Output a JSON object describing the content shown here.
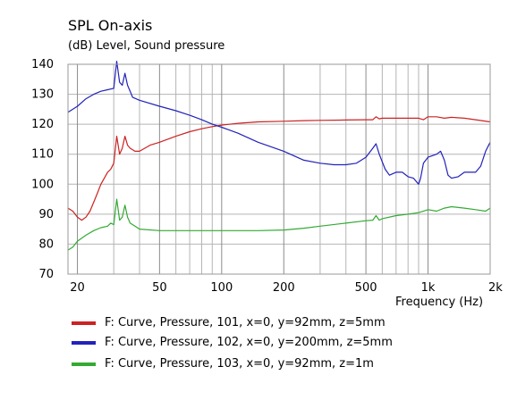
{
  "chart_data": {
    "type": "line",
    "title": "SPL On-axis",
    "ylabel": "(dB)  Level, Sound pressure",
    "xlabel": "Frequency  (Hz)",
    "x_scale": "log",
    "xlim": [
      18,
      2000
    ],
    "ylim": [
      70,
      140
    ],
    "x_ticks": [
      {
        "value": 20,
        "label": "20"
      },
      {
        "value": 50,
        "label": "50"
      },
      {
        "value": 100,
        "label": "100"
      },
      {
        "value": 200,
        "label": "200"
      },
      {
        "value": 500,
        "label": "500"
      },
      {
        "value": 1000,
        "label": "1k"
      },
      {
        "value": 2000,
        "label": "2k"
      }
    ],
    "y_ticks": [
      70,
      80,
      90,
      100,
      110,
      120,
      130,
      140
    ],
    "grid": true,
    "legend_position": "bottom",
    "series": [
      {
        "name": "F: Curve, Pressure, 101, x=0, y=92mm, z=5mm",
        "color": "#cc2222",
        "points": [
          [
            18,
            92
          ],
          [
            19,
            91
          ],
          [
            20,
            89
          ],
          [
            21,
            88
          ],
          [
            22,
            89
          ],
          [
            23,
            91
          ],
          [
            24,
            94
          ],
          [
            25,
            97
          ],
          [
            26,
            100
          ],
          [
            27,
            102
          ],
          [
            28,
            104
          ],
          [
            29,
            105
          ],
          [
            30,
            107
          ],
          [
            31,
            116
          ],
          [
            32,
            110
          ],
          [
            33,
            112
          ],
          [
            34,
            116
          ],
          [
            35,
            113
          ],
          [
            36,
            112
          ],
          [
            38,
            111
          ],
          [
            40,
            111
          ],
          [
            45,
            113
          ],
          [
            50,
            114
          ],
          [
            60,
            116
          ],
          [
            70,
            117.5
          ],
          [
            80,
            118.5
          ],
          [
            90,
            119.2
          ],
          [
            100,
            119.7
          ],
          [
            120,
            120.3
          ],
          [
            150,
            120.8
          ],
          [
            200,
            121
          ],
          [
            250,
            121.2
          ],
          [
            300,
            121.3
          ],
          [
            400,
            121.4
          ],
          [
            500,
            121.5
          ],
          [
            540,
            121.5
          ],
          [
            560,
            122.5
          ],
          [
            580,
            121.8
          ],
          [
            600,
            122
          ],
          [
            700,
            122
          ],
          [
            800,
            122
          ],
          [
            900,
            122
          ],
          [
            950,
            121.5
          ],
          [
            1000,
            122.5
          ],
          [
            1100,
            122.5
          ],
          [
            1200,
            122
          ],
          [
            1300,
            122.3
          ],
          [
            1500,
            122
          ],
          [
            1700,
            121.5
          ],
          [
            2000,
            120.8
          ]
        ]
      },
      {
        "name": "F: Curve, Pressure, 102, x=0, y=200mm, z=5mm",
        "color": "#2222bb",
        "points": [
          [
            18,
            124
          ],
          [
            20,
            126
          ],
          [
            22,
            128.5
          ],
          [
            24,
            130
          ],
          [
            26,
            131
          ],
          [
            28,
            131.5
          ],
          [
            30,
            132
          ],
          [
            31,
            141
          ],
          [
            32,
            134
          ],
          [
            33,
            133
          ],
          [
            34,
            137
          ],
          [
            35,
            133
          ],
          [
            36,
            131
          ],
          [
            37,
            129
          ],
          [
            40,
            128
          ],
          [
            50,
            126
          ],
          [
            60,
            124.5
          ],
          [
            70,
            123
          ],
          [
            80,
            121.5
          ],
          [
            90,
            120
          ],
          [
            100,
            119
          ],
          [
            120,
            117
          ],
          [
            150,
            114
          ],
          [
            200,
            111
          ],
          [
            250,
            108
          ],
          [
            300,
            107
          ],
          [
            350,
            106.5
          ],
          [
            400,
            106.5
          ],
          [
            450,
            107
          ],
          [
            500,
            109
          ],
          [
            540,
            112
          ],
          [
            560,
            113.5
          ],
          [
            580,
            110
          ],
          [
            620,
            105
          ],
          [
            650,
            103
          ],
          [
            700,
            104
          ],
          [
            750,
            104
          ],
          [
            800,
            102.5
          ],
          [
            850,
            102
          ],
          [
            900,
            100
          ],
          [
            920,
            102
          ],
          [
            950,
            107
          ],
          [
            1000,
            109
          ],
          [
            1100,
            110
          ],
          [
            1150,
            111
          ],
          [
            1200,
            108
          ],
          [
            1250,
            103
          ],
          [
            1300,
            102
          ],
          [
            1400,
            102.5
          ],
          [
            1500,
            104
          ],
          [
            1700,
            104
          ],
          [
            1800,
            106
          ],
          [
            1900,
            111
          ],
          [
            2000,
            114
          ]
        ]
      },
      {
        "name": "F: Curve, Pressure, 103, x=0, y=92mm, z=1m",
        "color": "#33aa33",
        "points": [
          [
            18,
            78
          ],
          [
            19,
            79
          ],
          [
            20,
            81
          ],
          [
            22,
            83
          ],
          [
            24,
            84.5
          ],
          [
            26,
            85.5
          ],
          [
            28,
            86
          ],
          [
            29,
            87
          ],
          [
            30,
            86.5
          ],
          [
            31,
            95
          ],
          [
            32,
            88
          ],
          [
            33,
            89
          ],
          [
            34,
            93
          ],
          [
            35,
            89
          ],
          [
            36,
            87
          ],
          [
            38,
            86
          ],
          [
            40,
            85
          ],
          [
            50,
            84.5
          ],
          [
            70,
            84.5
          ],
          [
            100,
            84.5
          ],
          [
            150,
            84.5
          ],
          [
            200,
            84.7
          ],
          [
            250,
            85.3
          ],
          [
            300,
            86
          ],
          [
            400,
            87
          ],
          [
            500,
            87.8
          ],
          [
            540,
            88
          ],
          [
            560,
            89.5
          ],
          [
            580,
            88
          ],
          [
            600,
            88.5
          ],
          [
            700,
            89.5
          ],
          [
            800,
            90
          ],
          [
            900,
            90.5
          ],
          [
            1000,
            91.5
          ],
          [
            1100,
            91
          ],
          [
            1200,
            92
          ],
          [
            1300,
            92.5
          ],
          [
            1500,
            92
          ],
          [
            1700,
            91.5
          ],
          [
            1900,
            91
          ],
          [
            2000,
            92
          ]
        ]
      }
    ]
  }
}
